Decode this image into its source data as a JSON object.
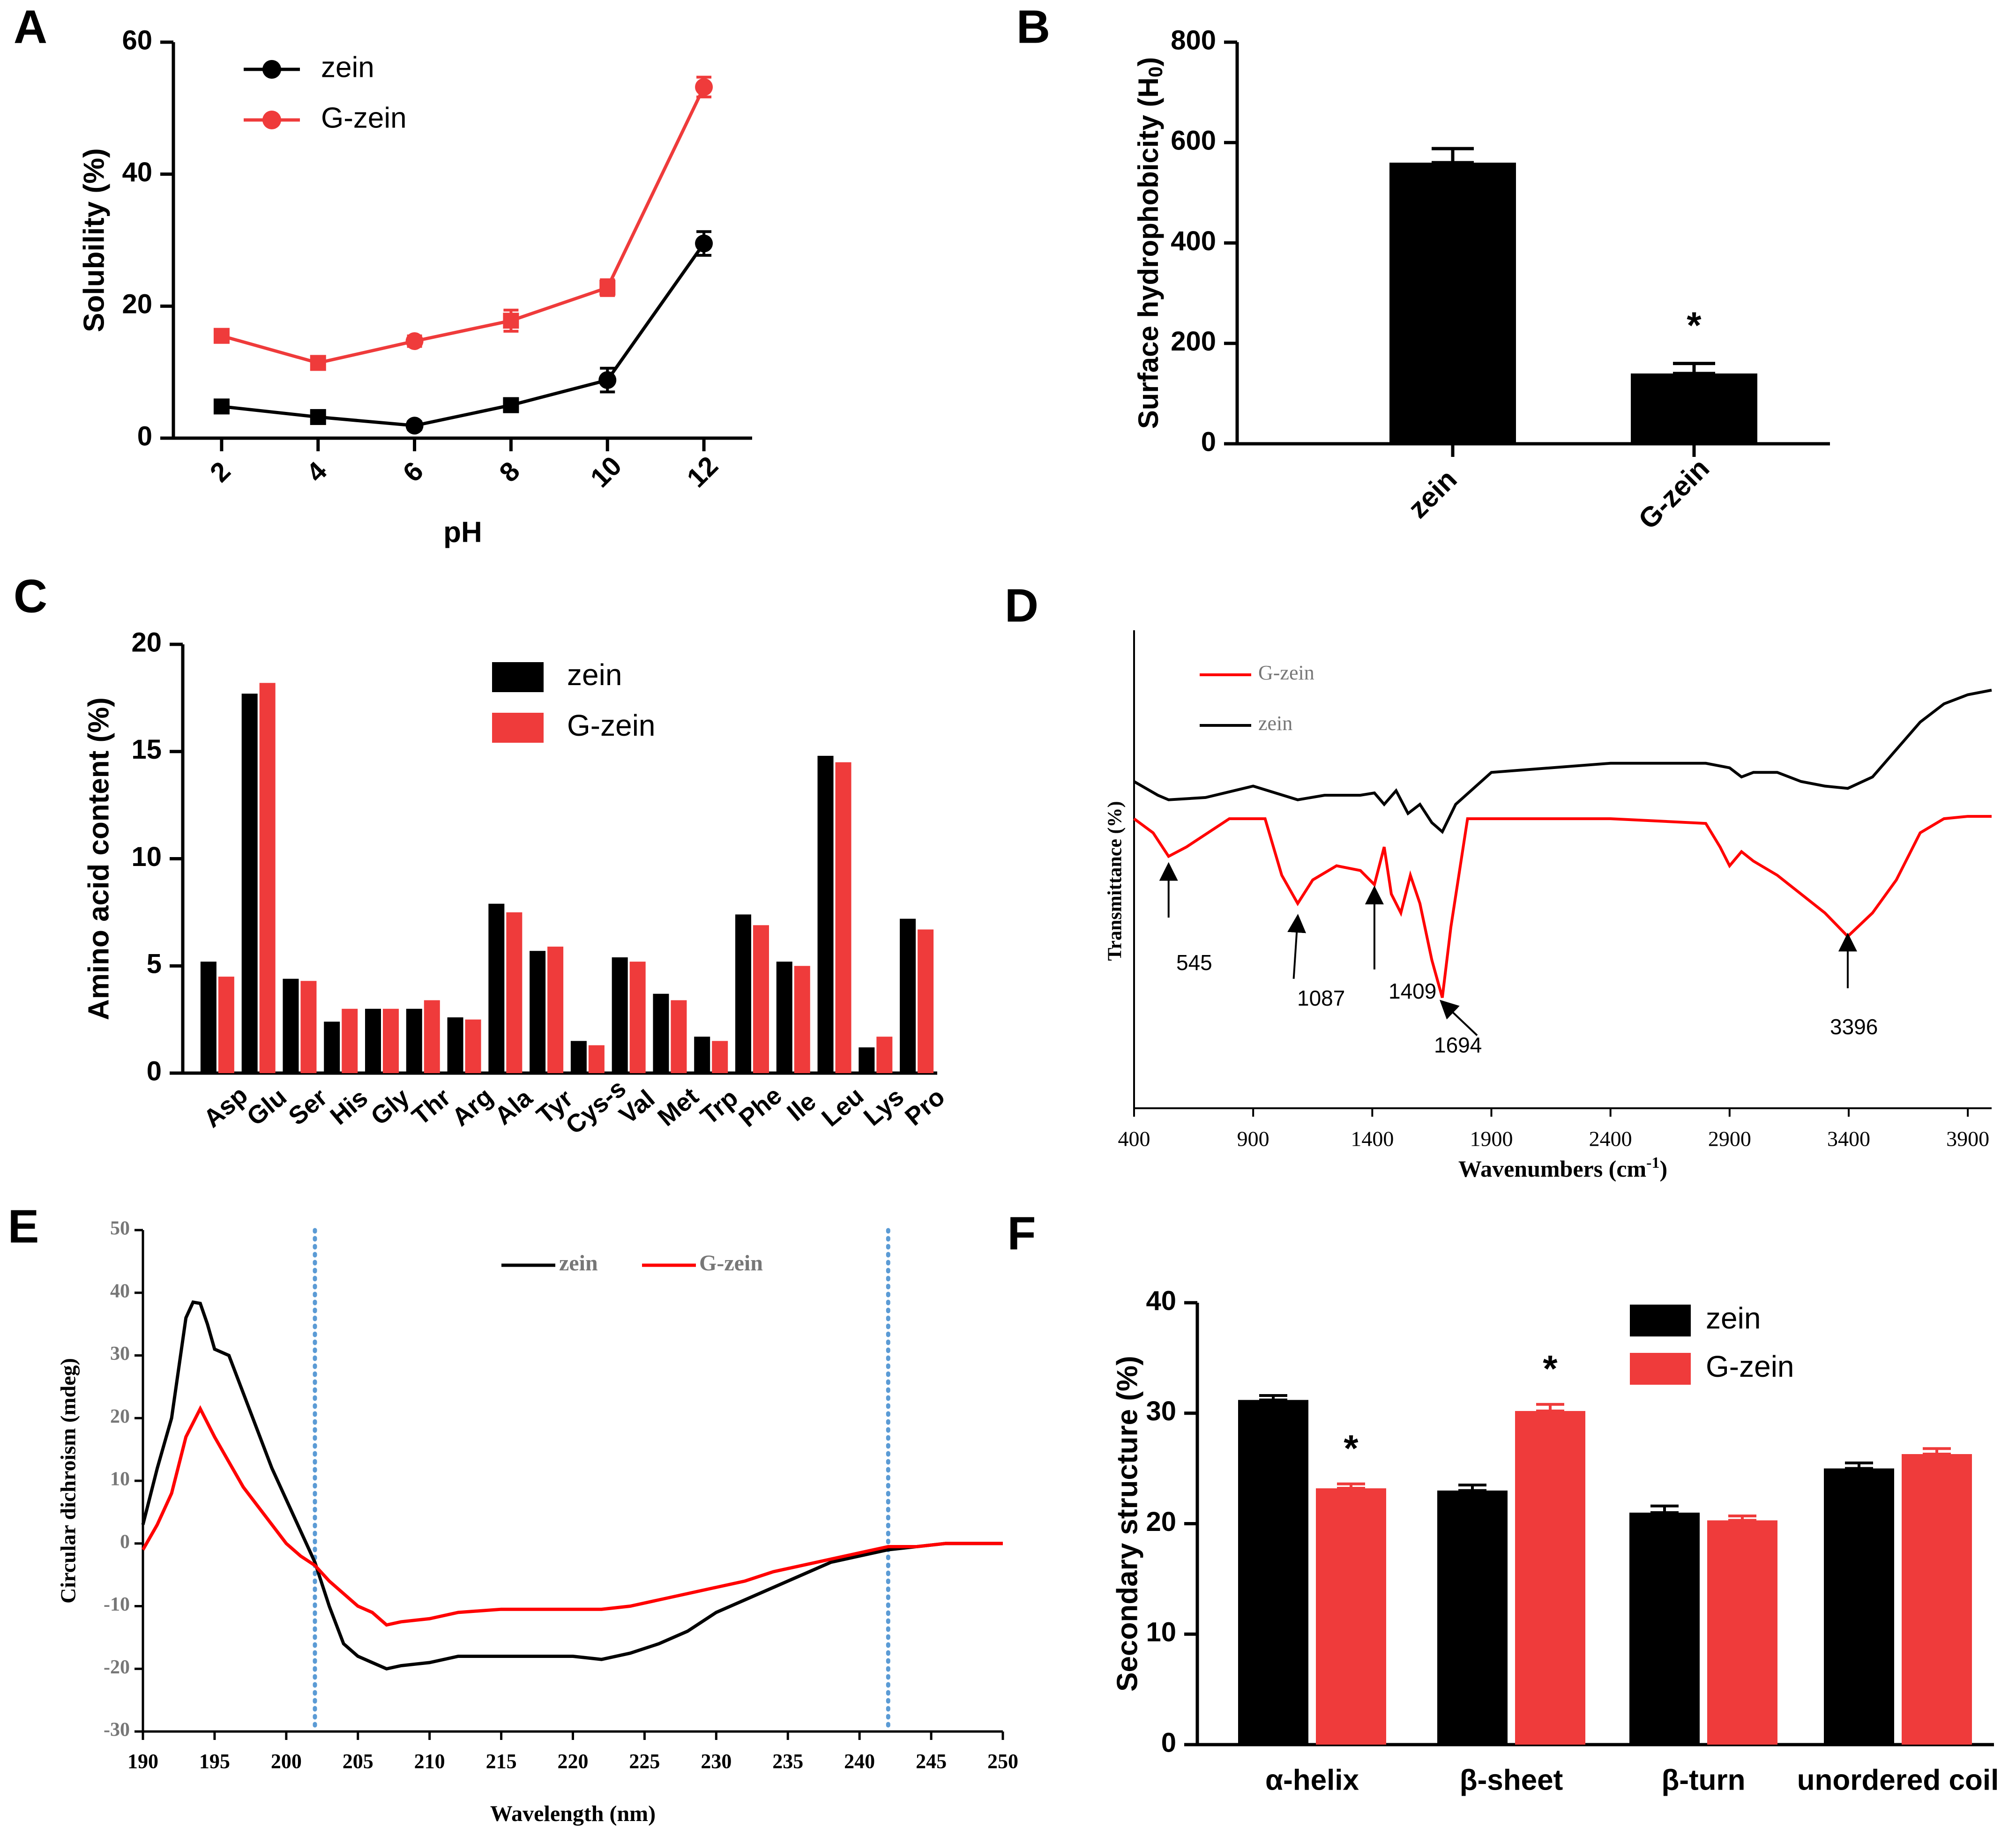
{
  "figure": {
    "panel_labels": [
      "A",
      "B",
      "C",
      "D",
      "E",
      "F"
    ],
    "colors": {
      "zein": "#000000",
      "g_zein": "#ef3b3b",
      "ftir_red": "#ff0000",
      "guide": "#5b9bd5"
    }
  },
  "chart_data": [
    {
      "panel": "A",
      "type": "line",
      "title": "",
      "xlabel": "pH",
      "ylabel": "Solubility (%)",
      "x": [
        2,
        4,
        6,
        8,
        10,
        12
      ],
      "xlim": [
        1,
        13
      ],
      "ylim": [
        0,
        60
      ],
      "yticks": [
        0,
        20,
        40,
        60
      ],
      "xticks": [
        2,
        4,
        6,
        8,
        10,
        12
      ],
      "legend": "top-left",
      "series": [
        {
          "name": "zein",
          "values": [
            4.8,
            3.2,
            1.9,
            5.0,
            8.8,
            29.5
          ],
          "errors": [
            0.8,
            0.7,
            0.6,
            1.0,
            1.8,
            1.8
          ]
        },
        {
          "name": "G-zein",
          "values": [
            15.5,
            11.4,
            14.7,
            17.8,
            22.8,
            53.2
          ],
          "errors": [
            0.6,
            0.8,
            0.8,
            1.6,
            1.2,
            1.5
          ]
        }
      ]
    },
    {
      "panel": "B",
      "type": "bar",
      "title": "",
      "xlabel": "",
      "ylabel": "Surface hydrophobicity (H0)",
      "ylabel_main": "Surface hydrophobicity (H",
      "ylabel_sub": "0",
      "ylabel_end": ")",
      "categories": [
        "zein",
        "G-zein"
      ],
      "values": [
        560,
        140
      ],
      "errors": [
        28,
        20
      ],
      "ylim": [
        0,
        800
      ],
      "yticks": [
        0,
        200,
        400,
        600,
        800
      ],
      "annotations": [
        {
          "category": "G-zein",
          "text": "*"
        }
      ]
    },
    {
      "panel": "C",
      "type": "bar",
      "title": "",
      "xlabel": "",
      "ylabel": "Amino acid content (%)",
      "categories": [
        "Asp",
        "Glu",
        "Ser",
        "His",
        "Gly",
        "Thr",
        "Arg",
        "Ala",
        "Tyr",
        "Cys-s",
        "Val",
        "Met",
        "Trp",
        "Phe",
        "Ile",
        "Leu",
        "Lys",
        "Pro"
      ],
      "ylim": [
        0,
        20
      ],
      "yticks": [
        0,
        5,
        10,
        15,
        20
      ],
      "legend": "top-center",
      "series": [
        {
          "name": "zein",
          "values": [
            5.2,
            17.7,
            4.4,
            2.4,
            3.0,
            3.0,
            2.6,
            7.9,
            5.7,
            1.5,
            5.4,
            3.7,
            1.7,
            7.4,
            5.2,
            14.8,
            1.2,
            7.2
          ]
        },
        {
          "name": "G-zein",
          "values": [
            4.5,
            18.2,
            4.3,
            3.0,
            3.0,
            3.4,
            2.5,
            7.5,
            5.9,
            1.3,
            5.2,
            3.4,
            1.5,
            6.9,
            5.0,
            14.5,
            1.7,
            6.7
          ]
        }
      ]
    },
    {
      "panel": "D",
      "type": "line",
      "title": "",
      "xlabel": "Wavenumbers (cm-1)",
      "xlabel_main": "Wavenumbers (cm",
      "xlabel_sup": "-1",
      "xlabel_end": ")",
      "ylabel": "Transmittance (%)",
      "xlim": [
        400,
        4000
      ],
      "xticks": [
        400,
        900,
        1400,
        1900,
        2400,
        2900,
        3400,
        3900
      ],
      "ylim": [
        0,
        100
      ],
      "legend": "top-left",
      "series": [
        {
          "name": "zein",
          "x": [
            400,
            500,
            545,
            700,
            900,
            1087,
            1200,
            1350,
            1409,
            1450,
            1500,
            1550,
            1600,
            1650,
            1694,
            1750,
            1900,
            2400,
            2800,
            2900,
            2950,
            3000,
            3100,
            3200,
            3300,
            3396,
            3500,
            3600,
            3700,
            3800,
            3900,
            4000
          ],
          "values": [
            71,
            68,
            67,
            67.5,
            70,
            67,
            68,
            68,
            68.5,
            66,
            69,
            64,
            66,
            62,
            60,
            66,
            73,
            75,
            75,
            74,
            72,
            73,
            73,
            71,
            70,
            69.5,
            72,
            78,
            84,
            88,
            90,
            91
          ]
        },
        {
          "name": "G-zein",
          "x": [
            400,
            480,
            545,
            620,
            800,
            950,
            1020,
            1087,
            1150,
            1250,
            1350,
            1409,
            1450,
            1480,
            1520,
            1560,
            1600,
            1650,
            1694,
            1730,
            1800,
            2400,
            2800,
            2860,
            2900,
            2950,
            3000,
            3100,
            3200,
            3300,
            3396,
            3500,
            3600,
            3700,
            3800,
            3900,
            4000
          ],
          "values": [
            58,
            55,
            50,
            52,
            58,
            58,
            46,
            40,
            45,
            48,
            47,
            44,
            52,
            42,
            38,
            46,
            40,
            28,
            20,
            35,
            58,
            58,
            57,
            52,
            48,
            51,
            49,
            46,
            42,
            38,
            33,
            38,
            45,
            55,
            58,
            58.5,
            58.5
          ]
        }
      ],
      "annotations": [
        {
          "text": "545",
          "x": 545
        },
        {
          "text": "1087",
          "x": 1087
        },
        {
          "text": "1409",
          "x": 1409
        },
        {
          "text": "1694",
          "x": 1694
        },
        {
          "text": "3396",
          "x": 3396
        }
      ]
    },
    {
      "panel": "E",
      "type": "line",
      "title": "",
      "xlabel": "Wavelength (nm)",
      "ylabel": "Circular dichroism (mdeg)",
      "xlim": [
        190,
        250
      ],
      "xticks": [
        190,
        195,
        200,
        205,
        210,
        215,
        220,
        225,
        230,
        235,
        240,
        245,
        250
      ],
      "ylim": [
        -30,
        50
      ],
      "yticks": [
        -30,
        -20,
        -10,
        0,
        10,
        20,
        30,
        40,
        50
      ],
      "reference_lines_x": [
        202,
        242
      ],
      "legend": "top-center",
      "series": [
        {
          "name": "zein",
          "x": [
            190,
            191,
            192,
            193,
            193.5,
            194,
            194.5,
            195,
            196,
            197,
            198,
            199,
            200,
            201,
            202,
            203,
            204,
            205,
            206,
            207,
            208,
            210,
            212,
            215,
            218,
            220,
            222,
            224,
            226,
            228,
            230,
            232,
            234,
            236,
            238,
            240,
            242,
            244,
            246,
            248,
            250
          ],
          "values": [
            3,
            12,
            20,
            36,
            38.5,
            38.3,
            35,
            31,
            30,
            24,
            18,
            12,
            7,
            2,
            -3,
            -10,
            -16,
            -18,
            -19,
            -20,
            -19.5,
            -19,
            -18,
            -18,
            -18,
            -18,
            -18.5,
            -17.5,
            -16,
            -14,
            -11,
            -9,
            -7,
            -5,
            -3,
            -2,
            -1,
            -0.5,
            0,
            0,
            0
          ]
        },
        {
          "name": "G-zein",
          "x": [
            190,
            191,
            192,
            193,
            194,
            195,
            196,
            197,
            198,
            199,
            200,
            201,
            202,
            203,
            204,
            205,
            206,
            207,
            208,
            210,
            212,
            215,
            218,
            220,
            222,
            224,
            226,
            228,
            230,
            232,
            234,
            236,
            238,
            240,
            242,
            244,
            246,
            248,
            250
          ],
          "values": [
            -1,
            3,
            8,
            17,
            21.5,
            17,
            13,
            9,
            6,
            3,
            0,
            -2,
            -3.5,
            -6,
            -8,
            -10,
            -11,
            -13,
            -12.5,
            -12,
            -11,
            -10.5,
            -10.5,
            -10.5,
            -10.5,
            -10,
            -9,
            -8,
            -7,
            -6,
            -4.5,
            -3.5,
            -2.5,
            -1.5,
            -0.5,
            -0.5,
            0,
            0,
            0
          ]
        }
      ]
    },
    {
      "panel": "F",
      "type": "bar",
      "title": "",
      "xlabel": "",
      "ylabel": "Secondary structure (%)",
      "categories": [
        "α-helix",
        "β-sheet",
        "β-turn",
        "unordered coil"
      ],
      "ylim": [
        0,
        40
      ],
      "yticks": [
        0,
        10,
        20,
        30,
        40
      ],
      "legend": "top-right",
      "series": [
        {
          "name": "zein",
          "values": [
            31.2,
            23.0,
            21.0,
            25.0
          ],
          "errors": [
            0.4,
            0.5,
            0.6,
            0.5
          ]
        },
        {
          "name": "G-zein",
          "values": [
            23.2,
            30.2,
            20.3,
            26.3
          ],
          "errors": [
            0.4,
            0.6,
            0.4,
            0.5
          ]
        }
      ],
      "annotations": [
        {
          "category": "α-helix",
          "series": "G-zein",
          "text": "*"
        },
        {
          "category": "β-sheet",
          "series": "G-zein",
          "text": "*"
        }
      ]
    }
  ]
}
